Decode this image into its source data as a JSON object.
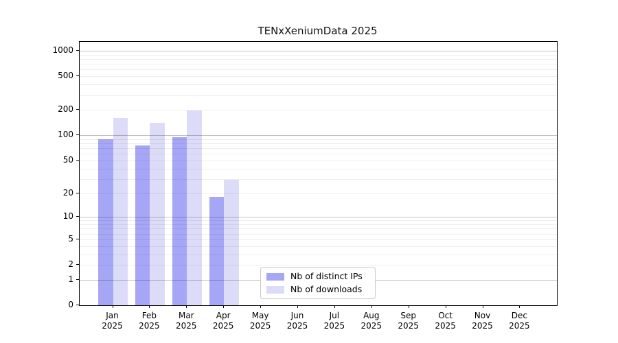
{
  "chart_data": {
    "type": "bar",
    "title": "TENxXeniumData 2025",
    "x_categories": [
      "Jan",
      "Feb",
      "Mar",
      "Apr",
      "May",
      "Jun",
      "Jul",
      "Aug",
      "Sep",
      "Oct",
      "Nov",
      "Dec"
    ],
    "x_year": "2025",
    "series": [
      {
        "name": "Nb of distinct IPs",
        "color": "#a6a6f6",
        "values": [
          90,
          75,
          95,
          18,
          0,
          0,
          0,
          0,
          0,
          0,
          0,
          0
        ]
      },
      {
        "name": "Nb of downloads",
        "color": "#dcdcf9",
        "values": [
          160,
          140,
          198,
          29,
          0,
          0,
          0,
          0,
          0,
          0,
          0,
          0
        ]
      }
    ],
    "yscale": "log1p",
    "ytick_labels": [
      0,
      1,
      2,
      5,
      10,
      20,
      50,
      100,
      200,
      500,
      1000
    ],
    "ylim": [
      0,
      1275
    ],
    "grid": "horizontal-log-minor-and-major",
    "grid_major_values": [
      1,
      10,
      100,
      1000
    ],
    "legend": {
      "location": "inside-bottom-center",
      "entries": [
        "Nb of distinct IPs",
        "Nb of downloads"
      ]
    },
    "colors": {
      "background": "#ffffff",
      "axis": "#000000",
      "grid_major": "#c4c4c4",
      "grid_minor": "#ececec",
      "bar_distinct_ips": "#a6a6f6",
      "bar_downloads": "#dcdcf9"
    }
  }
}
